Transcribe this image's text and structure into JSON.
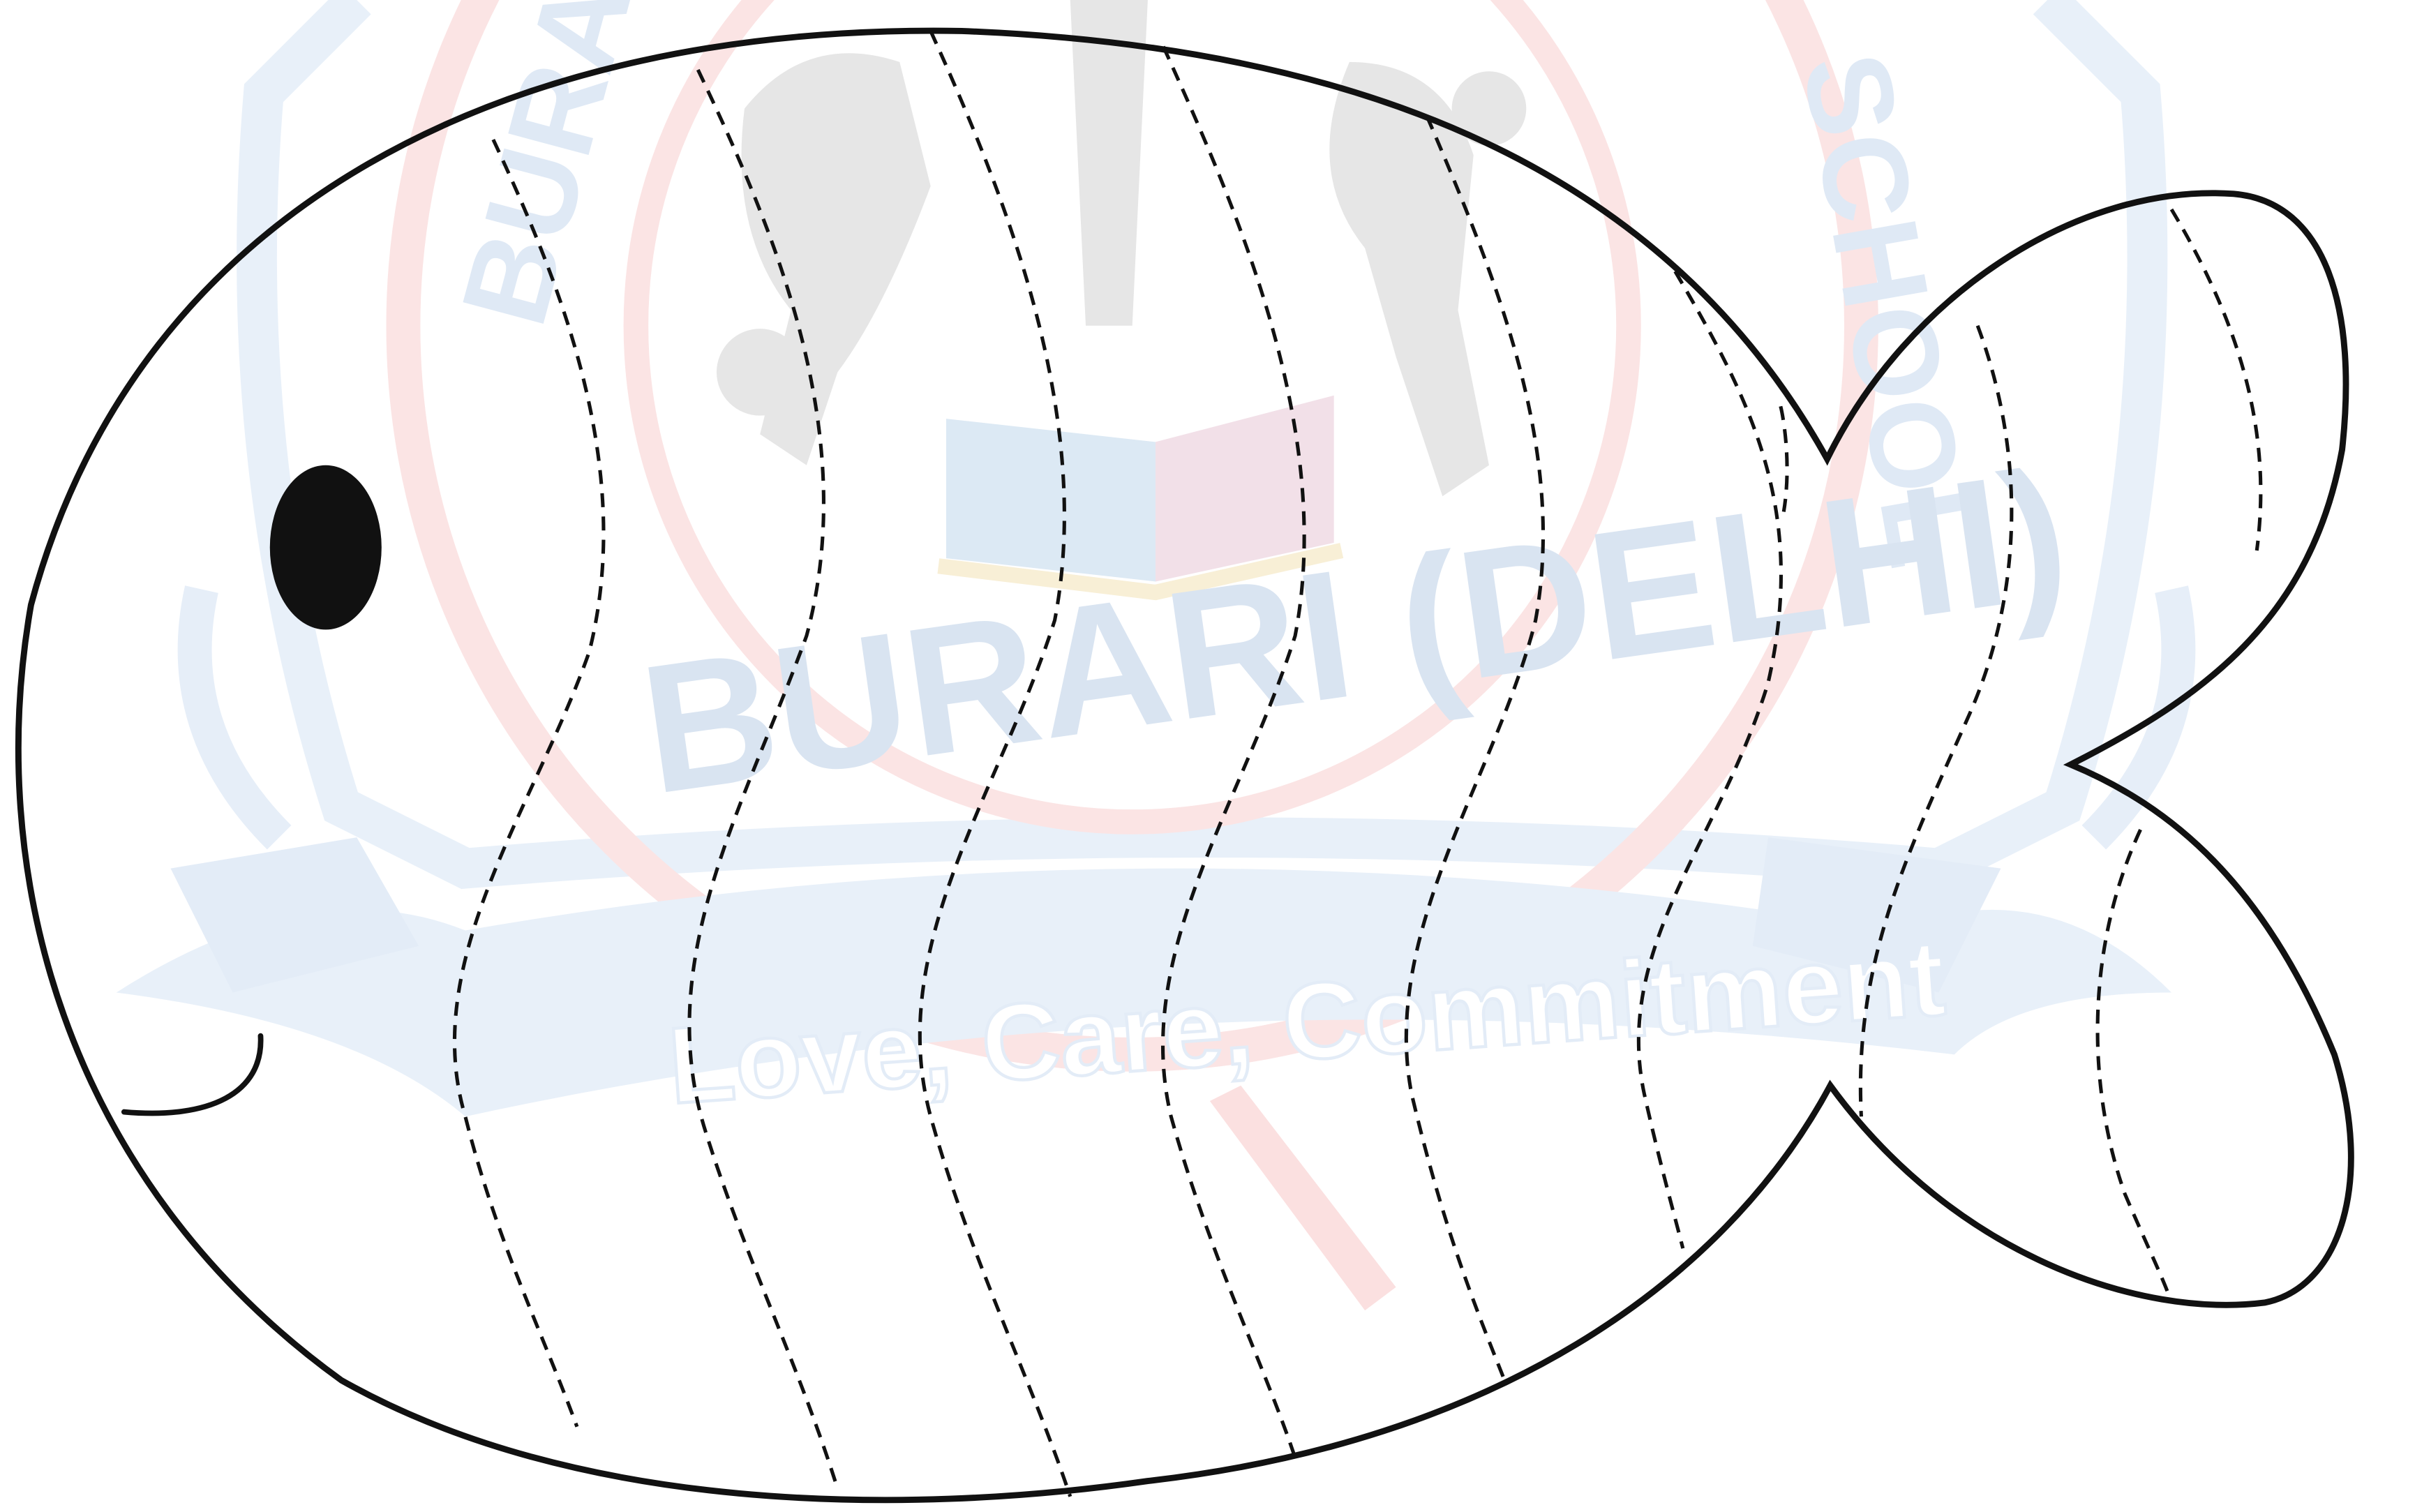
{
  "watermark": {
    "arc_top_left": "BURARI",
    "arc_top_right": "SCHOOL",
    "place": "BURARI (DELHI)",
    "motto": "Love, Care, Commitment",
    "colors": {
      "blue": "#dfe9f5",
      "blue_text": "#d6e2f0",
      "red_ring": "#f9dede",
      "figures": "#e4e4e4",
      "book_blue": "#d6e6f3",
      "book_pink": "#f0dbe4",
      "book_yellow": "#f8eed2"
    }
  },
  "fish": {
    "outline_color": "#111111",
    "eye_color": "#111111",
    "stripe_style": "dashed",
    "stripe_count_body": 7,
    "stripe_count_tail": 3
  }
}
